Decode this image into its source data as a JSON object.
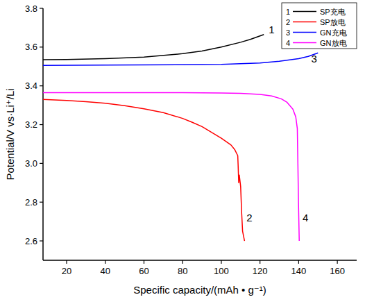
{
  "chart_data": {
    "type": "line",
    "x_label": "Specific capacity/(mAh • g⁻¹)",
    "y_label": "Potential/V vs·Li⁺/Li",
    "xlim": [
      7.8,
      170
    ],
    "ylim": [
      2.5,
      3.8
    ],
    "xticks": [
      20,
      40,
      60,
      80,
      100,
      120,
      140,
      160
    ],
    "yticks": [
      2.6,
      2.8,
      {
        "value": 3,
        "label": "3.0"
      },
      3.2,
      3.4,
      3.6,
      3.8
    ],
    "grid": false,
    "legend": "top-right",
    "series": [
      {
        "name": "SP充电",
        "color": "#000000",
        "x": [
          7.8,
          20,
          40,
          60,
          80,
          90,
          100,
          110,
          115,
          122
        ],
        "values": [
          3.535,
          3.536,
          3.54,
          3.548,
          3.566,
          3.58,
          3.6,
          3.625,
          3.64,
          3.665
        ]
      },
      {
        "name": "SP放电",
        "color": "#ff0000",
        "x": [
          7.8,
          20,
          30,
          40,
          50,
          60,
          70,
          80,
          85,
          90,
          100,
          105,
          107,
          108.5,
          108.7,
          109,
          109.3,
          110,
          110.5,
          111,
          112
        ],
        "values": [
          3.33,
          3.325,
          3.318,
          3.31,
          3.298,
          3.282,
          3.262,
          3.232,
          3.212,
          3.19,
          3.13,
          3.095,
          3.07,
          3.04,
          2.99,
          2.9,
          2.94,
          2.88,
          2.75,
          2.65,
          2.6
        ]
      },
      {
        "name": "GN充电",
        "color": "#0000ff",
        "x": [
          7.8,
          40,
          80,
          100,
          120,
          130,
          140,
          145,
          150
        ],
        "values": [
          3.505,
          3.507,
          3.509,
          3.511,
          3.518,
          3.527,
          3.54,
          3.552,
          3.57
        ]
      },
      {
        "name": "GN放电",
        "color": "#ff00ff",
        "x": [
          7.8,
          40,
          80,
          100,
          110,
          120,
          126,
          131,
          134,
          137,
          138.5,
          139.3,
          139.6,
          139.9,
          140.1,
          140.3
        ],
        "values": [
          3.365,
          3.365,
          3.365,
          3.363,
          3.361,
          3.356,
          3.348,
          3.333,
          3.315,
          3.28,
          3.24,
          3.18,
          3.0,
          2.8,
          2.7,
          2.6
        ]
      }
    ],
    "annotations": [
      {
        "text": "1",
        "x": 126,
        "y": 3.67
      },
      {
        "text": "2",
        "x": 114.5,
        "y": 2.7
      },
      {
        "text": "3",
        "x": 148,
        "y": 3.52
      },
      {
        "text": "4",
        "x": 143.5,
        "y": 2.7
      }
    ]
  }
}
